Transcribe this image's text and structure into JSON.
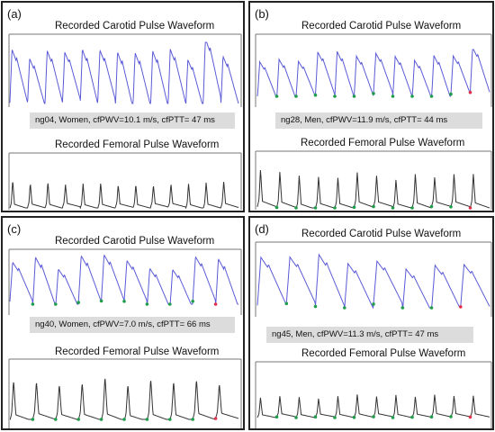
{
  "panels": [
    {
      "label": "(a)",
      "carotid_title": "Recorded Carotid Pulse Waveform",
      "femoral_title": "Recorded Femoral Pulse Waveform",
      "info": "ng04, Women, cfPWV=10.1 m/s, cfPTT= 47 ms"
    },
    {
      "label": "(b)",
      "carotid_title": "Recorded Carotid Pulse Waveform",
      "femoral_title": "Recorded Femoral Pulse Waveform",
      "info": "ng28, Men, cfPWV=11.9 m/s, cfPTT= 44 ms"
    },
    {
      "label": "(c)",
      "carotid_title": "Recorded Carotid Pulse Waveform",
      "femoral_title": "Recorded Femoral Pulse Waveform",
      "info": "ng40, Women, cfPWV=7.0 m/s, cfPTT= 66 ms"
    },
    {
      "label": "(d)",
      "carotid_title": "Recorded Carotid Pulse Waveform",
      "femoral_title": "Recorded Femoral Pulse Waveform",
      "info": "ng45, Men, cfPWV=11.3 m/s, cfPTT= 47 ms"
    }
  ],
  "colors": {
    "carotid_trace": "#5a5ad6",
    "femoral_trace": "#333333",
    "foot_marker": "#1e9e4a",
    "end_marker": "#e0304a",
    "frame": "#777777",
    "info_bg": "#dcdcdc"
  }
}
